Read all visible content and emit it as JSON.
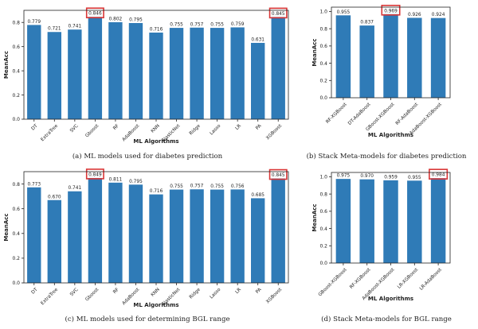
{
  "chart_data": [
    {
      "type": "bar",
      "caption": "(a) ML models used for diabetes prediction",
      "xlabel": "ML Algorithms",
      "ylabel": "MeanAcc",
      "categories": [
        "DT",
        "ExtraTree",
        "SVC",
        "Gboost",
        "RF",
        "AdaBoost",
        "KNN",
        "ElasticNet",
        "Ridge",
        "Lasso",
        "LR",
        "PA",
        "XGBoost"
      ],
      "values": [
        0.779,
        0.721,
        0.741,
        0.846,
        0.802,
        0.795,
        0.716,
        0.755,
        0.757,
        0.755,
        0.759,
        0.631,
        0.845
      ],
      "labels": [
        "0.779",
        "0.721",
        "0.741",
        "0.846",
        "0.802",
        "0.795",
        "0.716",
        "0.755",
        "0.757",
        "0.755",
        "0.759",
        "0.631",
        "0.845"
      ],
      "highlighted": [
        3,
        12
      ],
      "ylim": [
        0,
        0.9
      ],
      "yticks": [
        "0.0",
        "0.2",
        "0.4",
        "0.6",
        "0.8"
      ],
      "ytick_values": [
        0,
        0.2,
        0.4,
        0.6,
        0.8
      ]
    },
    {
      "type": "bar",
      "caption": "(b) Stack Meta-models for diabetes prediction",
      "xlabel": "ML Algorithms",
      "ylabel": "MeanAcc",
      "categories": [
        "RF-XGBoost",
        "DT-AdaBoost",
        "GBoost-XGBoost",
        "RF-AdaBoost",
        "AdaBoost-XGBoost"
      ],
      "values": [
        0.955,
        0.837,
        0.969,
        0.926,
        0.924
      ],
      "labels": [
        "0.955",
        "0.837",
        "0.969",
        "0.926",
        "0.924"
      ],
      "highlighted": [
        2
      ],
      "ylim": [
        0,
        1.05
      ],
      "yticks": [
        "0.0",
        "0.2",
        "0.4",
        "0.6",
        "0.8",
        "1.0"
      ],
      "ytick_values": [
        0,
        0.2,
        0.4,
        0.6,
        0.8,
        1.0
      ]
    },
    {
      "type": "bar",
      "caption": "(c) ML models used for determining BGL range",
      "xlabel": "ML Algorithms",
      "ylabel": "MeanAcc",
      "categories": [
        "DT",
        "ExtraTree",
        "SVC",
        "Gboost",
        "RF",
        "AdaBoost",
        "KNN",
        "ElasticNet",
        "Ridge",
        "Lasso",
        "LR",
        "PA",
        "XGBoost"
      ],
      "values": [
        0.773,
        0.67,
        0.741,
        0.849,
        0.811,
        0.795,
        0.716,
        0.755,
        0.757,
        0.755,
        0.756,
        0.685,
        0.845
      ],
      "labels": [
        "0.773",
        "0.670",
        "0.741",
        "0.849",
        "0.811",
        "0.795",
        "0.716",
        "0.755",
        "0.757",
        "0.755",
        "0.756",
        "0.685",
        "0.845"
      ],
      "highlighted": [
        3,
        12
      ],
      "ylim": [
        0,
        0.9
      ],
      "yticks": [
        "0.0",
        "0.2",
        "0.4",
        "0.6",
        "0.8"
      ],
      "ytick_values": [
        0,
        0.2,
        0.4,
        0.6,
        0.8
      ]
    },
    {
      "type": "bar",
      "caption": "(d) Stack Meta-models for BGL range",
      "xlabel": "ML Algorithms",
      "ylabel": "MeanAcc",
      "categories": [
        "GBoost-XGBoost",
        "RF-XGBoost",
        "AdaBoost-XGBoost",
        "LR-XGBoost",
        "LR-AdaBoost"
      ],
      "values": [
        0.975,
        0.97,
        0.959,
        0.955,
        0.984
      ],
      "labels": [
        "0.975",
        "0.970",
        "0.959",
        "0.955",
        "0.984"
      ],
      "highlighted": [
        4
      ],
      "ylim": [
        0,
        1.05
      ],
      "yticks": [
        "0.0",
        "0.2",
        "0.4",
        "0.6",
        "0.8",
        "1.0"
      ],
      "ytick_values": [
        0,
        0.2,
        0.4,
        0.6,
        0.8,
        1.0
      ]
    }
  ],
  "colors": {
    "bar": "#2f7bb7",
    "highlight": "#d93636",
    "axis": "#222222"
  }
}
